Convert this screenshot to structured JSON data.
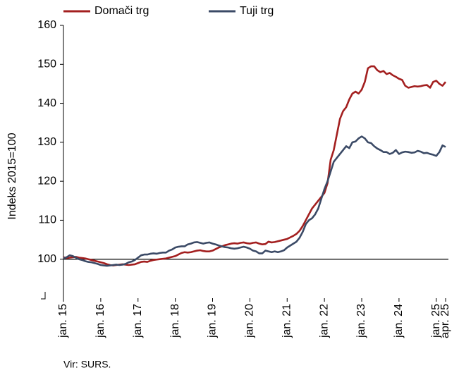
{
  "chart_data": {
    "type": "line",
    "ylabel": "Indeks 2015=100",
    "source": "Vir: SURS.",
    "ylim": [
      90,
      160
    ],
    "yticks": [
      100,
      110,
      120,
      130,
      140,
      150,
      160
    ],
    "reference_line": 100,
    "legend": "top-left",
    "categories": [
      "jan. 15",
      null,
      null,
      null,
      null,
      null,
      null,
      null,
      null,
      null,
      null,
      null,
      "jan. 16",
      null,
      null,
      null,
      null,
      null,
      null,
      null,
      null,
      null,
      null,
      null,
      "jan. 17",
      null,
      null,
      null,
      null,
      null,
      null,
      null,
      null,
      null,
      null,
      null,
      "jan. 18",
      null,
      null,
      null,
      null,
      null,
      null,
      null,
      null,
      null,
      null,
      null,
      "jan. 19",
      null,
      null,
      null,
      null,
      null,
      null,
      null,
      null,
      null,
      null,
      null,
      "jan. 20",
      null,
      null,
      null,
      null,
      null,
      null,
      null,
      null,
      null,
      null,
      null,
      "jan. 21",
      null,
      null,
      null,
      null,
      null,
      null,
      null,
      null,
      null,
      null,
      null,
      "jan. 22",
      null,
      null,
      null,
      null,
      null,
      null,
      null,
      null,
      null,
      null,
      null,
      "jan. 23",
      null,
      null,
      null,
      null,
      null,
      null,
      null,
      null,
      null,
      null,
      null,
      "jan. 24",
      null,
      null,
      null,
      null,
      null,
      null,
      null,
      null,
      null,
      null,
      null,
      "jan. 25",
      null,
      null,
      "apr. 25"
    ],
    "series": [
      {
        "name": "Domači trg",
        "color": "#a31f1f",
        "values": [
          100.5,
          100.3,
          100.4,
          100.5,
          100.6,
          100.4,
          100.3,
          100.2,
          100.0,
          99.8,
          99.6,
          99.4,
          99.2,
          99.0,
          98.7,
          98.5,
          98.4,
          98.5,
          98.6,
          98.7,
          98.6,
          98.5,
          98.6,
          98.7,
          99.0,
          99.3,
          99.4,
          99.3,
          99.6,
          99.8,
          99.9,
          100.0,
          100.1,
          100.2,
          100.4,
          100.6,
          100.8,
          101.2,
          101.6,
          101.8,
          101.7,
          101.8,
          102.0,
          102.2,
          102.3,
          102.1,
          102.0,
          102.0,
          102.2,
          102.6,
          103.0,
          103.3,
          103.6,
          103.8,
          104.0,
          104.1,
          104.0,
          104.2,
          104.3,
          104.1,
          104.0,
          104.2,
          104.3,
          104.0,
          103.8,
          103.9,
          104.5,
          104.3,
          104.4,
          104.6,
          104.8,
          105.0,
          105.2,
          105.6,
          106.0,
          106.5,
          107.3,
          108.5,
          110.0,
          111.5,
          113.0,
          114.0,
          115.0,
          116.0,
          117.0,
          119.5,
          125.5,
          128.0,
          132.0,
          136.0,
          138.0,
          139.0,
          141.0,
          142.5,
          143.0,
          142.5,
          143.5,
          145.5,
          149.0,
          149.5,
          149.5,
          148.5,
          148.0,
          148.3,
          147.5,
          147.8,
          147.2,
          146.8,
          146.3,
          146.0,
          144.5,
          144.0,
          144.2,
          144.4,
          144.3,
          144.4,
          144.6,
          144.7,
          144.0,
          145.5,
          145.8,
          145.0,
          144.5,
          145.5
        ]
      },
      {
        "name": "Tuji trg",
        "color": "#3b4a66",
        "values": [
          100.2,
          100.5,
          101.0,
          100.8,
          100.4,
          100.0,
          99.8,
          99.5,
          99.3,
          99.2,
          99.0,
          98.8,
          98.5,
          98.4,
          98.3,
          98.4,
          98.5,
          98.6,
          98.5,
          98.6,
          98.8,
          99.2,
          99.4,
          99.8,
          100.4,
          101.0,
          101.2,
          101.2,
          101.4,
          101.5,
          101.4,
          101.6,
          101.7,
          101.7,
          102.2,
          102.5,
          103.0,
          103.2,
          103.3,
          103.3,
          103.8,
          104.0,
          104.3,
          104.4,
          104.2,
          104.0,
          104.2,
          104.3,
          104.0,
          103.8,
          103.5,
          103.3,
          103.1,
          103.0,
          102.8,
          102.7,
          102.8,
          103.0,
          103.2,
          103.0,
          102.7,
          102.2,
          102.0,
          101.5,
          101.5,
          102.2,
          102.0,
          101.8,
          102.0,
          101.8,
          102.0,
          102.3,
          103.0,
          103.5,
          104.0,
          104.5,
          105.5,
          107.0,
          109.0,
          110.0,
          110.5,
          111.5,
          113.0,
          115.5,
          118.0,
          120.0,
          122.5,
          125.0,
          126.0,
          127.0,
          128.0,
          129.0,
          128.5,
          130.0,
          130.2,
          131.0,
          131.5,
          131.0,
          130.0,
          129.8,
          129.0,
          128.4,
          128.0,
          127.5,
          127.5,
          127.0,
          127.3,
          128.0,
          127.0,
          127.4,
          127.6,
          127.5,
          127.3,
          127.4,
          127.8,
          127.6,
          127.2,
          127.3,
          127.0,
          126.8,
          126.5,
          127.5,
          129.2,
          128.8
        ]
      }
    ]
  }
}
